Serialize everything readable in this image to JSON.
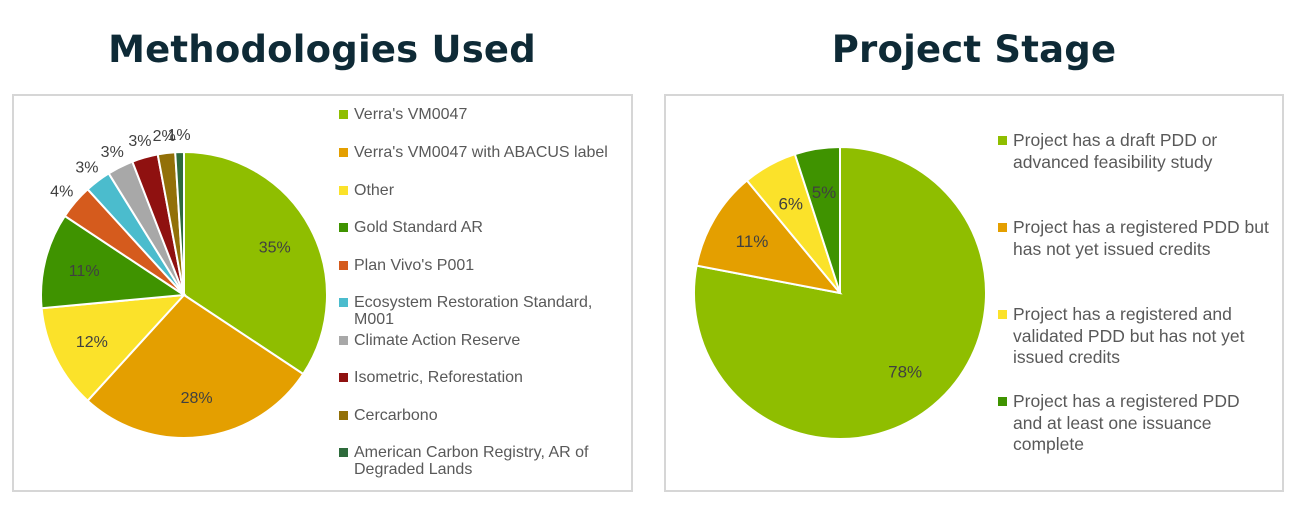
{
  "titles": {
    "left": "Methodologies Used",
    "right": "Project Stage"
  },
  "chart_data": [
    {
      "type": "pie",
      "title": "Methodologies Used",
      "legend_position": "right",
      "slices": [
        {
          "label": "Verra's VM0047",
          "value": 35,
          "color": "#8fbe00"
        },
        {
          "label": "Verra's VM0047 with ABACUS label",
          "value": 28,
          "color": "#e49f00"
        },
        {
          "label": "Other",
          "value": 12,
          "color": "#fbe22a"
        },
        {
          "label": "Gold Standard AR",
          "value": 11,
          "color": "#3f9300"
        },
        {
          "label": "Plan Vivo's P001",
          "value": 4,
          "color": "#d55b1d"
        },
        {
          "label": "Ecosystem Restoration Standard, M001",
          "value": 3,
          "color": "#4bbccd"
        },
        {
          "label": "Climate Action Reserve",
          "value": 3,
          "color": "#a8a8a8"
        },
        {
          "label": "Isometric, Reforestation",
          "value": 3,
          "color": "#8f1110"
        },
        {
          "label": "Cercarbono",
          "value": 2,
          "color": "#927008"
        },
        {
          "label": "American Carbon Registry, AR of Degraded Lands",
          "value": 1,
          "color": "#2e6b3c"
        }
      ]
    },
    {
      "type": "pie",
      "title": "Project Stage",
      "legend_position": "right",
      "slices": [
        {
          "label": "Project has a draft PDD or advanced feasibility study",
          "value": 78,
          "color": "#8fbe00"
        },
        {
          "label": "Project has a registered PDD but has not yet issued credits",
          "value": 11,
          "color": "#e49f00"
        },
        {
          "label": "Project has a registered and validated PDD but has not yet issued credits",
          "value": 6,
          "color": "#fbe22a"
        },
        {
          "label": "Project has a registered PDD and at least one issuance complete",
          "value": 5,
          "color": "#3f9300"
        }
      ]
    }
  ]
}
